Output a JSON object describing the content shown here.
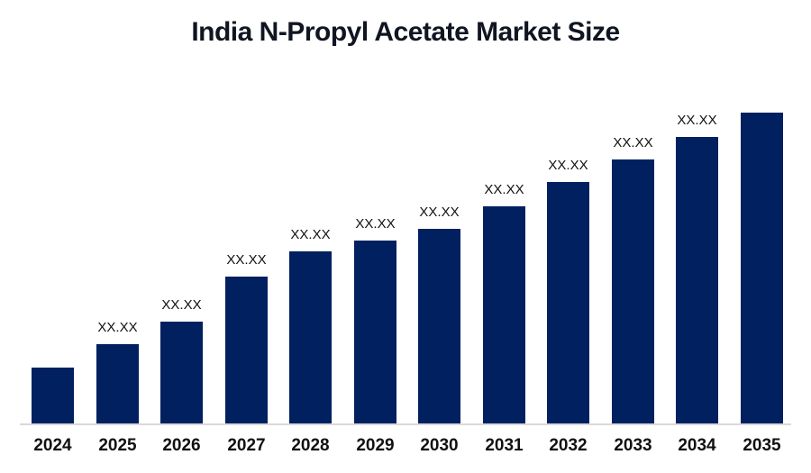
{
  "chart_data": {
    "type": "bar",
    "title": "India N-Propyl Acetate Market Size",
    "categories": [
      "2024",
      "2025",
      "2026",
      "2027",
      "2028",
      "2029",
      "2030",
      "2031",
      "2032",
      "2033",
      "2034",
      "2035"
    ],
    "value_labels": [
      "",
      "XX.XX",
      "XX.XX",
      "XX.XX",
      "XX.XX",
      "XX.XX",
      "XX.XX",
      "XX.XX",
      "XX.XX",
      "XX.XX",
      "XX.XX",
      ""
    ],
    "values_masked": true,
    "relative_heights": [
      0.18,
      0.255,
      0.328,
      0.472,
      0.554,
      0.588,
      0.626,
      0.699,
      0.777,
      0.849,
      0.922,
      1.0
    ],
    "xlabel": "",
    "ylabel": "",
    "value_axis_visible": false,
    "gridlines": false,
    "legend": "none",
    "bar_color": "#002060",
    "axis_line_color": "#d9d9d9",
    "title_color": "#111522",
    "label_color": "#111111"
  }
}
